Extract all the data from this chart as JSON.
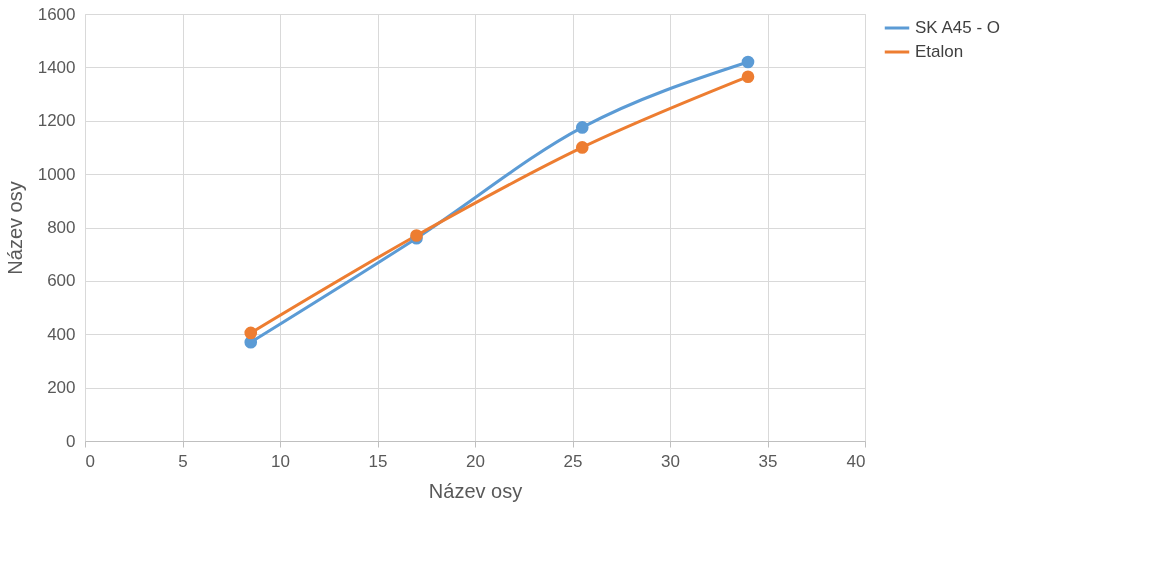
{
  "chart_data": {
    "type": "line",
    "xlabel": "Název osy",
    "ylabel": "Název osy",
    "xlim": [
      0,
      40
    ],
    "xticks": [
      0,
      5,
      10,
      15,
      20,
      25,
      30,
      35,
      40
    ],
    "ylim": [
      0,
      1600
    ],
    "yticks": [
      0,
      200,
      400,
      600,
      800,
      1000,
      1200,
      1400,
      1600
    ],
    "grid": true,
    "legend": "right",
    "marker": "circle",
    "line_style": "solid",
    "series": [
      {
        "name": "SK A45 - O",
        "color": "#5b9bd5",
        "x": [
          8.5,
          17,
          25.5,
          34
        ],
        "values": [
          370,
          760,
          1175,
          1420
        ]
      },
      {
        "name": "Etalon",
        "color": "#ed7d31",
        "x": [
          8.5,
          17,
          25.5,
          34
        ],
        "values": [
          405,
          770,
          1100,
          1365
        ]
      }
    ]
  }
}
